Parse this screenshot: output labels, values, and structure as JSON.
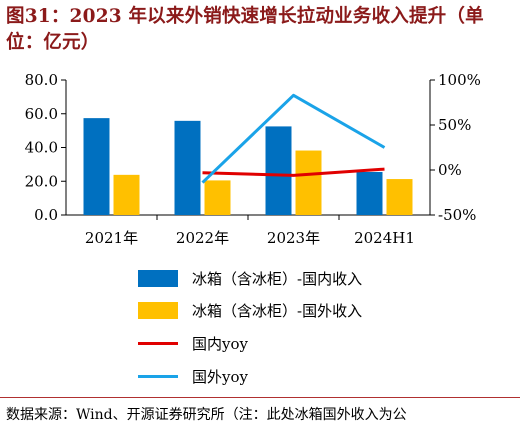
{
  "title": "图31：2023 年以来外销快速增长拉动业务收入提升（单位：亿元）",
  "source": "数据来源：Wind、开源证券研究所（注：此处冰箱国外收入为公",
  "chart_data": {
    "type": "bar+line",
    "categories": [
      "2021年",
      "2022年",
      "2023年",
      "2024H1"
    ],
    "y_left": {
      "ticks": [
        "0.0",
        "20.0",
        "40.0",
        "60.0",
        "80.0"
      ],
      "range": [
        0,
        80
      ]
    },
    "y_right": {
      "ticks": [
        "-50%",
        "0%",
        "50%",
        "100%"
      ],
      "range": [
        -50,
        100
      ]
    },
    "bars": [
      {
        "name": "冰箱（含冰柜）-国内收入",
        "color": "#0070c0",
        "values": [
          57.4,
          55.8,
          52.5,
          25.5
        ]
      },
      {
        "name": "冰箱（含冰柜）-国外收入",
        "color": "#ffc000",
        "values": [
          23.8,
          20.5,
          38.2,
          21.3
        ]
      }
    ],
    "lines": [
      {
        "name": "国内yoy",
        "color": "#e00000",
        "x_index": [
          1,
          2,
          3
        ],
        "values": [
          -3,
          -6,
          1
        ]
      },
      {
        "name": "国外yoy",
        "color": "#1aa3e8",
        "x_index": [
          1,
          2,
          3
        ],
        "values": [
          -14,
          83,
          25
        ]
      }
    ]
  }
}
